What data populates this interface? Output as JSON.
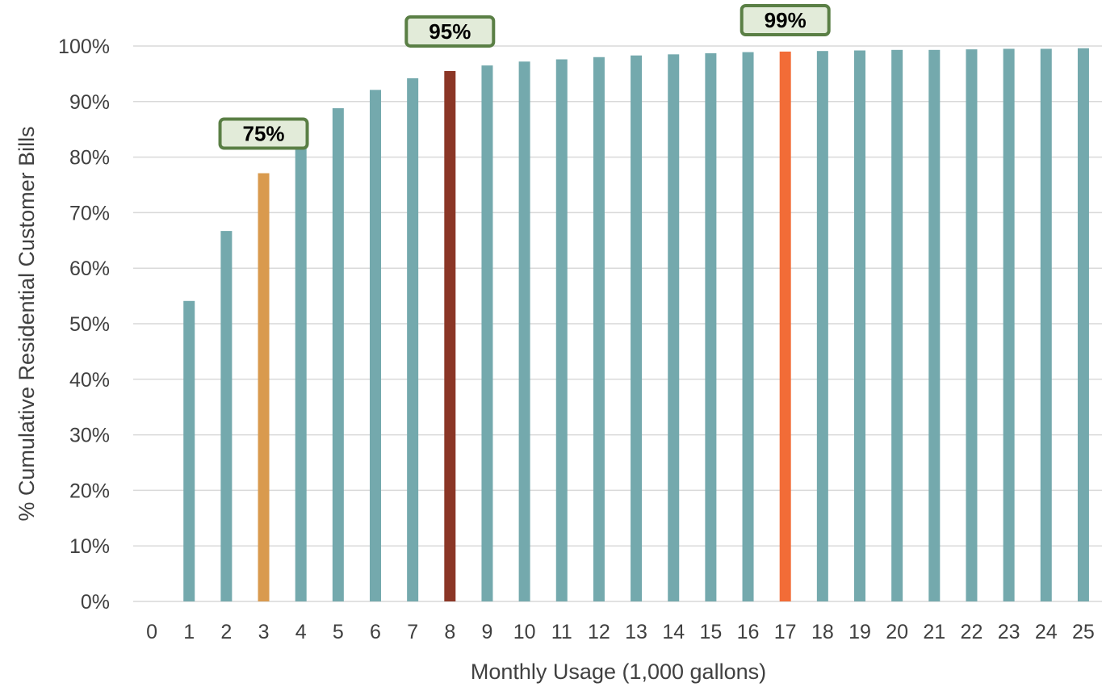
{
  "chart_data": {
    "type": "bar",
    "title": "",
    "xlabel": "Monthly Usage (1,000 gallons)",
    "ylabel": "% Cumulative Residential Customer Bills",
    "ylim": [
      0,
      100
    ],
    "yticks": [
      "0%",
      "10%",
      "20%",
      "30%",
      "40%",
      "50%",
      "60%",
      "70%",
      "80%",
      "90%",
      "100%"
    ],
    "grid": true,
    "categories": [
      "0",
      "1",
      "2",
      "3",
      "4",
      "5",
      "6",
      "7",
      "8",
      "9",
      "10",
      "11",
      "12",
      "13",
      "14",
      "15",
      "16",
      "17",
      "18",
      "19",
      "20",
      "21",
      "22",
      "23",
      "24",
      "25"
    ],
    "values": [
      0,
      54.1,
      66.7,
      77.1,
      83.8,
      88.8,
      92.1,
      94.2,
      95.5,
      96.5,
      97.2,
      97.6,
      98.0,
      98.3,
      98.5,
      98.7,
      98.9,
      99.0,
      99.1,
      99.2,
      99.3,
      99.3,
      99.4,
      99.5,
      99.5,
      99.6
    ],
    "colors": {
      "default": "#74A9AD",
      "highlight_75": "#D99A4E",
      "highlight_95": "#8B3626",
      "highlight_99": "#F26C37",
      "gridline": "#D9D9D9",
      "callout_fill": "#E2EBD9",
      "callout_border": "#5A7F45"
    },
    "highlights": [
      {
        "category": "3",
        "color_key": "highlight_75"
      },
      {
        "category": "8",
        "color_key": "highlight_95"
      },
      {
        "category": "17",
        "color_key": "highlight_99"
      }
    ],
    "annotations": [
      {
        "text": "75%",
        "category": "3"
      },
      {
        "text": "95%",
        "category": "8"
      },
      {
        "text": "99%",
        "category": "17"
      }
    ]
  }
}
